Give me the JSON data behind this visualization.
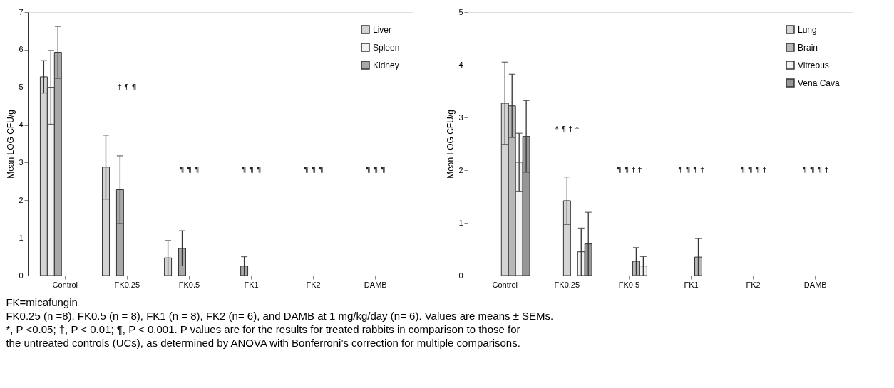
{
  "chart_data": [
    {
      "type": "bar",
      "ylabel": "Mean LOG CFU/g",
      "categories": [
        "Control",
        "FK0.25",
        "FK0.5",
        "FK1",
        "FK2",
        "DAMB"
      ],
      "ylim": [
        0,
        7
      ],
      "yticks": [
        0,
        1,
        2,
        3,
        4,
        5,
        6,
        7
      ],
      "grid": false,
      "legend": "top right",
      "series": [
        {
          "name": "Liver",
          "color": "#d4d4d4",
          "values": [
            5.28,
            2.88,
            0.47,
            0,
            0,
            0
          ],
          "errors": [
            0.43,
            0.85,
            0.46,
            null,
            null,
            null
          ]
        },
        {
          "name": "Spleen",
          "color": "#f2f2f2",
          "values": [
            5.0,
            0,
            0,
            0,
            0,
            0
          ],
          "errors": [
            0.98,
            null,
            null,
            null,
            null,
            null
          ]
        },
        {
          "name": "Kidney",
          "color": "#a8a8a8",
          "values": [
            5.93,
            2.28,
            0.72,
            0.25,
            0,
            0
          ],
          "errors": [
            0.69,
            0.9,
            0.47,
            0.25,
            null,
            null
          ]
        }
      ],
      "annotations": [
        "† ¶ ¶",
        "¶ ¶ ¶",
        "¶ ¶ ¶",
        "¶ ¶ ¶",
        "¶ ¶ ¶"
      ]
    },
    {
      "type": "bar",
      "ylabel": "Mean LOG CFU/g",
      "categories": [
        "Control",
        "FK0.25",
        "FK0.5",
        "FK1",
        "FK2",
        "DAMB"
      ],
      "ylim": [
        0,
        5
      ],
      "yticks": [
        0,
        1,
        2,
        3,
        4,
        5
      ],
      "grid": false,
      "legend": "top right",
      "series": [
        {
          "name": "Lung",
          "color": "#d4d4d4",
          "values": [
            3.27,
            1.42,
            0,
            0,
            0,
            0
          ],
          "errors": [
            0.78,
            0.45,
            null,
            null,
            null,
            null
          ]
        },
        {
          "name": "Brain",
          "color": "#b8b8b8",
          "values": [
            3.22,
            0,
            0.27,
            0.35,
            0,
            0
          ],
          "errors": [
            0.6,
            null,
            0.26,
            0.35,
            null,
            null
          ]
        },
        {
          "name": "Vitreous",
          "color": "#f2f2f2",
          "values": [
            2.15,
            0.45,
            0.18,
            0,
            0,
            0
          ],
          "errors": [
            0.55,
            0.45,
            0.18,
            null,
            null,
            null
          ]
        },
        {
          "name": "Vena Cava",
          "color": "#969696",
          "values": [
            2.64,
            0.6,
            0,
            0,
            0,
            0
          ],
          "errors": [
            0.68,
            0.6,
            null,
            null,
            null,
            null
          ]
        }
      ],
      "annotations": [
        "*  ¶ †  *",
        "¶ ¶ † †",
        "¶ ¶ ¶ †",
        "¶ ¶ ¶ †",
        "¶ ¶ ¶ †"
      ]
    },
    {
      "type": "other",
      "annotations": [
        "FK=micafungin",
        "FK0.25 (n =8), FK0.5 (n = 8), FK1 (n = 8), FK2 (n= 6), and DAMB at 1 mg/kg/day (n= 6). Values are means ± SEMs.",
        "*, P <0.05; †, P < 0.01; ¶, P < 0.001. P values are for the results for treated rabbits in comparison to those for",
        "the untreated controls (UCs), as determined by ANOVA with Bonferroni’s correction for multiple comparisons."
      ]
    }
  ]
}
